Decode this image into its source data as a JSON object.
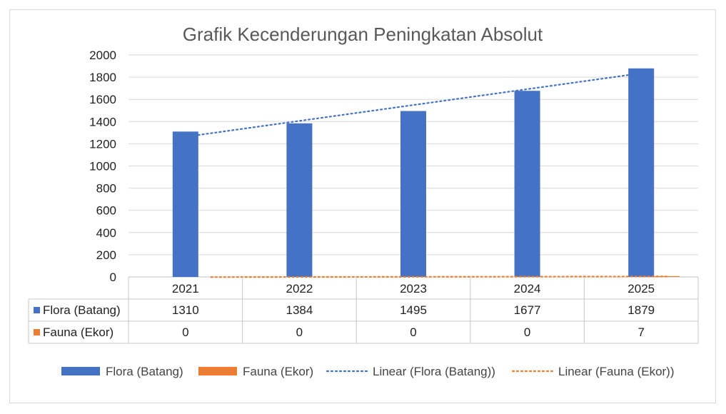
{
  "chart_data": {
    "type": "bar",
    "title": "Grafik Kecenderungan Peningkatan Absolut",
    "categories": [
      "2021",
      "2022",
      "2023",
      "2024",
      "2025"
    ],
    "series": [
      {
        "name": "Flora (Batang)",
        "values": [
          1310,
          1384,
          1495,
          1677,
          1879
        ],
        "color": "#4472C4"
      },
      {
        "name": "Fauna (Ekor)",
        "values": [
          0,
          0,
          0,
          0,
          7
        ],
        "color": "#ED7D31"
      }
    ],
    "trendlines": [
      {
        "name": "Linear (Flora (Batang))",
        "series": "Flora (Batang)",
        "type": "linear",
        "color": "#4472C4"
      },
      {
        "name": "Linear (Fauna (Ekor))",
        "series": "Fauna (Ekor)",
        "type": "linear",
        "color": "#ED7D31"
      }
    ],
    "yticks": [
      "0",
      "200",
      "400",
      "600",
      "800",
      "1000",
      "1200",
      "1400",
      "1600",
      "1800",
      "2000"
    ],
    "ylim": [
      0,
      2000
    ],
    "grid": true,
    "data_table": true,
    "legend_position": "bottom"
  }
}
